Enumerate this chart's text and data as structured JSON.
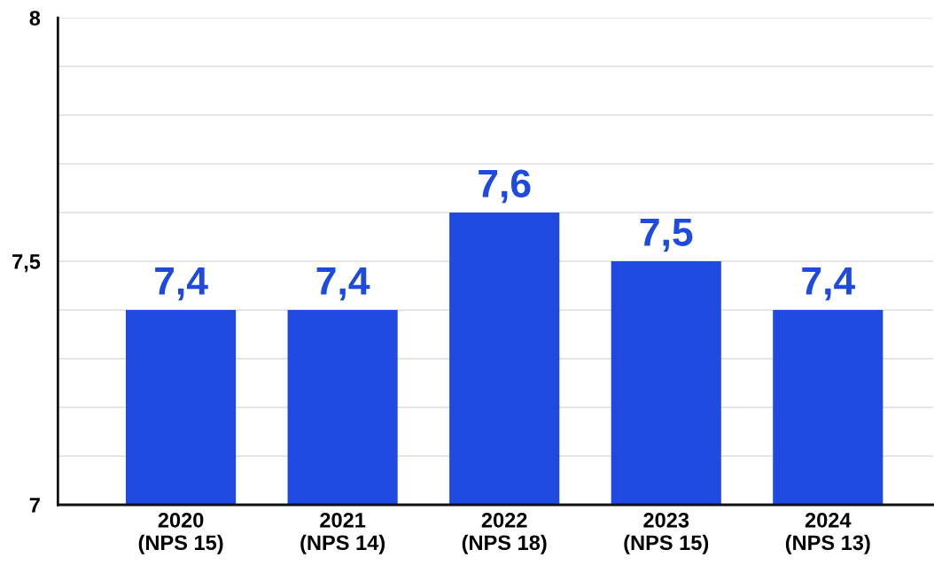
{
  "chart_data": {
    "type": "bar",
    "categories": [
      "2020\n(NPS 15)",
      "2021\n(NPS 14)",
      "2022\n(NPS 18)",
      "2023\n(NPS 15)",
      "2024\n(NPS 13)"
    ],
    "values": [
      7.4,
      7.4,
      7.6,
      7.5,
      7.4
    ],
    "value_labels": [
      "7,4",
      "7,4",
      "7,6",
      "7,5",
      "7,4"
    ],
    "color": "#1f4ae0",
    "ylim": [
      7,
      8
    ],
    "yticks": [
      7,
      {
        "value": 7.1,
        "label": null
      },
      {
        "value": 7.2,
        "label": null
      },
      {
        "value": 7.3,
        "label": null
      },
      {
        "value": 7.4,
        "label": null
      },
      {
        "value": 7.5,
        "label": "7,5"
      },
      {
        "value": 7.6,
        "label": null
      },
      {
        "value": 7.7,
        "label": null
      },
      {
        "value": 7.8,
        "label": null
      },
      {
        "value": 7.9,
        "label": null
      },
      8
    ],
    "grid": "y"
  }
}
